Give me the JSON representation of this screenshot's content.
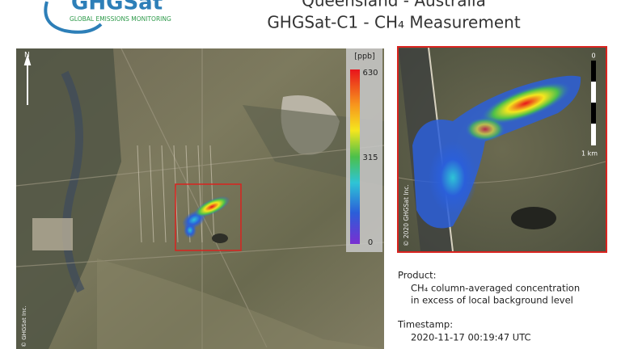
{
  "header": {
    "logo": "GHGSat",
    "tagline": "GLOBAL EMISSIONS MONITORING",
    "title": [
      "Queensland - Australia",
      "GHGSat-C1 - CH₄ Measurement"
    ]
  },
  "map": {
    "north": "N",
    "copyright": "© GHGSat Inc.",
    "colorbar": {
      "unit": "[ppb]",
      "ticks": [
        630,
        315,
        0
      ]
    }
  },
  "inset": {
    "scale": [
      "0",
      "1 km"
    ],
    "copyright": "© 2020 GHGSat Inc."
  },
  "info": {
    "product_label": "Product:",
    "product": [
      "CH₄ column-averaged concentration",
      "in excess of local background level"
    ],
    "timestamp_label": "Timestamp:",
    "timestamp": "2020-11-17 00:19:47 UTC"
  }
}
